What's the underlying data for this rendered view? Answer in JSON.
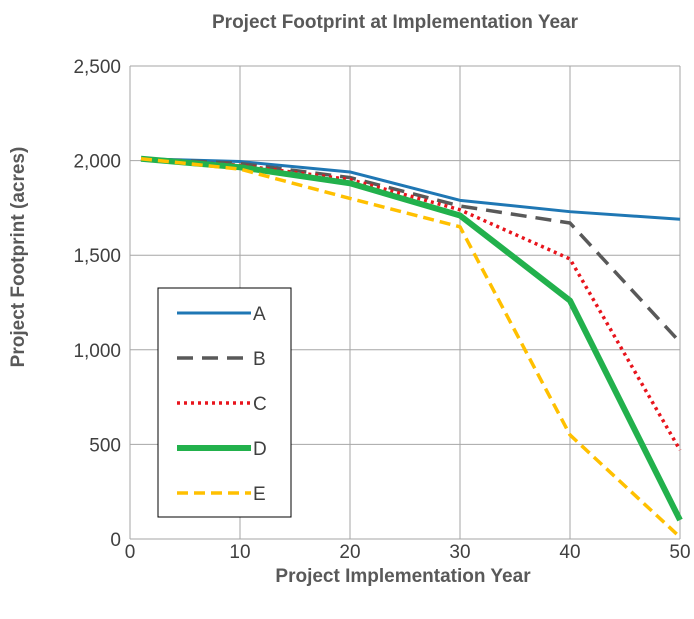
{
  "chart_data": {
    "type": "line",
    "title": "Project Footprint at Implementation Year",
    "xlabel": "Project Implementation Year",
    "ylabel": "Project Footprint (acres)",
    "xlim": [
      0,
      50
    ],
    "ylim": [
      0,
      2500
    ],
    "x_ticks": [
      0,
      10,
      20,
      30,
      40,
      50
    ],
    "y_ticks": [
      0,
      500,
      1000,
      1500,
      2000,
      2500
    ],
    "x_tick_labels": [
      "0",
      "10",
      "20",
      "30",
      "40",
      "50"
    ],
    "y_tick_labels": [
      "0",
      "500",
      "1,000",
      "1,500",
      "2,000",
      "2,500"
    ],
    "grid": true,
    "legend_position": "bottom-left",
    "x": [
      1,
      10,
      20,
      30,
      40,
      50
    ],
    "series": [
      {
        "name": "A",
        "values": [
          2010,
          1995,
          1940,
          1790,
          1730,
          1690
        ],
        "color": "#1f77b4",
        "style": "solid",
        "width": 3
      },
      {
        "name": "B",
        "values": [
          2010,
          1985,
          1910,
          1760,
          1670,
          1040
        ],
        "color": "#595959",
        "style": "dashed",
        "width": 3.5
      },
      {
        "name": "C",
        "values": [
          2010,
          1975,
          1900,
          1740,
          1480,
          470
        ],
        "color": "#e8141c",
        "style": "dotted",
        "width": 3.5
      },
      {
        "name": "D",
        "values": [
          2010,
          1965,
          1880,
          1710,
          1260,
          100
        ],
        "color": "#22b14c",
        "style": "solid",
        "width": 6
      },
      {
        "name": "E",
        "values": [
          2010,
          1955,
          1800,
          1650,
          550,
          10
        ],
        "color": "#ffc000",
        "style": "dashed-short",
        "width": 3.5
      }
    ]
  }
}
